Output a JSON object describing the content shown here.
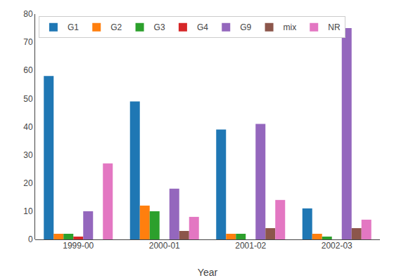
{
  "chart_data": {
    "type": "bar",
    "categories": [
      "1999-00",
      "2000-01",
      "2001-02",
      "2002-03"
    ],
    "series": [
      {
        "name": "G1",
        "values": [
          58,
          49,
          39,
          11
        ]
      },
      {
        "name": "G2",
        "values": [
          2,
          12,
          2,
          2
        ]
      },
      {
        "name": "G3",
        "values": [
          2,
          10,
          2,
          1
        ]
      },
      {
        "name": "G4",
        "values": [
          1,
          0,
          0,
          0
        ]
      },
      {
        "name": "G9",
        "values": [
          10,
          18,
          41,
          75
        ]
      },
      {
        "name": "mix",
        "values": [
          0,
          3,
          4,
          4
        ]
      },
      {
        "name": "NR",
        "values": [
          27,
          8,
          14,
          7
        ]
      }
    ],
    "xlabel": "Year",
    "ylim": [
      0,
      80
    ],
    "yticks": [
      0,
      10,
      20,
      30,
      40,
      50,
      60,
      70,
      80
    ],
    "grid": false,
    "legend": "upper left"
  }
}
